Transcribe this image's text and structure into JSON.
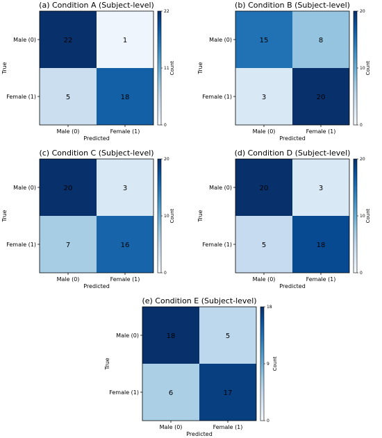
{
  "chart_data": [
    {
      "type": "heatmap",
      "title": "(a) Condition A (Subject-level)",
      "xlabel": "Predicted",
      "ylabel": "True",
      "x_categories": [
        "Male (0)",
        "Female (1)"
      ],
      "y_categories": [
        "Male (0)",
        "Female (1)"
      ],
      "values": [
        [
          22,
          1
        ],
        [
          5,
          18
        ]
      ],
      "colorbar": {
        "label": "Count",
        "ticks": [
          0,
          11,
          22
        ],
        "range": [
          0,
          22
        ]
      },
      "colormap": "Blues"
    },
    {
      "type": "heatmap",
      "title": "(b) Condition B (Subject-level)",
      "xlabel": "Predicted",
      "ylabel": "True",
      "x_categories": [
        "Male (0)",
        "Female (1)"
      ],
      "y_categories": [
        "Male (0)",
        "Female (1)"
      ],
      "values": [
        [
          15,
          8
        ],
        [
          3,
          20
        ]
      ],
      "colorbar": {
        "label": "Count",
        "ticks": [
          0,
          10,
          20
        ],
        "range": [
          0,
          20
        ]
      },
      "colormap": "Blues"
    },
    {
      "type": "heatmap",
      "title": "(c) Condition C (Subject-level)",
      "xlabel": "Predicted",
      "ylabel": "True",
      "x_categories": [
        "Male (0)",
        "Female (1)"
      ],
      "y_categories": [
        "Male (0)",
        "Female (1)"
      ],
      "values": [
        [
          20,
          3
        ],
        [
          7,
          16
        ]
      ],
      "colorbar": {
        "label": "Count",
        "ticks": [
          0,
          10,
          20
        ],
        "range": [
          0,
          20
        ]
      },
      "colormap": "Blues"
    },
    {
      "type": "heatmap",
      "title": "(d) Condition D (Subject-level)",
      "xlabel": "Predicted",
      "ylabel": "True",
      "x_categories": [
        "Male (0)",
        "Female (1)"
      ],
      "y_categories": [
        "Male (0)",
        "Female (1)"
      ],
      "values": [
        [
          20,
          3
        ],
        [
          5,
          18
        ]
      ],
      "colorbar": {
        "label": "Count",
        "ticks": [
          0,
          10,
          20
        ],
        "range": [
          0,
          20
        ]
      },
      "colormap": "Blues"
    },
    {
      "type": "heatmap",
      "title": "(e) Condition E (Subject-level)",
      "xlabel": "Predicted",
      "ylabel": "True",
      "x_categories": [
        "Male (0)",
        "Female (1)"
      ],
      "y_categories": [
        "Male (0)",
        "Female (1)"
      ],
      "values": [
        [
          18,
          5
        ],
        [
          6,
          17
        ]
      ],
      "colorbar": {
        "label": "Count",
        "ticks": [
          0,
          9,
          18
        ],
        "range": [
          0,
          18
        ]
      },
      "colormap": "Blues"
    }
  ]
}
